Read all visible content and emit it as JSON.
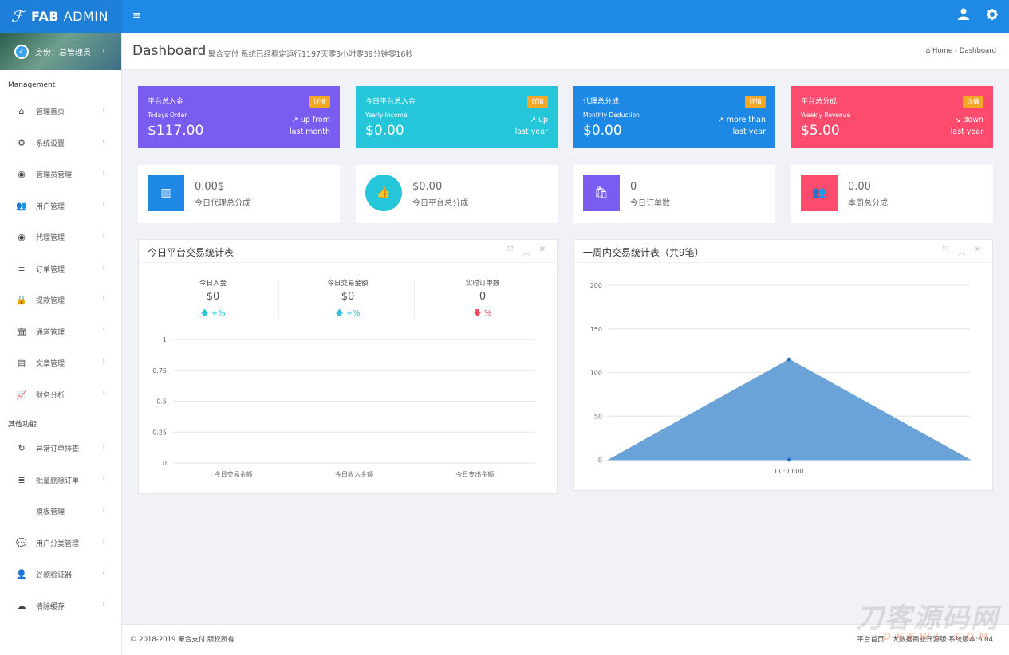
{
  "brand": {
    "bold": "FAB",
    "rest": " ADMIN",
    "logo_glyph": "ℱ"
  },
  "topbar": {
    "menu_icon": "≡",
    "user_icon": "user-icon",
    "settings_icon": "gear-icon"
  },
  "profile": {
    "label": "身份：总管理员"
  },
  "sidebar": {
    "section1": "Management",
    "items1": [
      {
        "label": "管理首页",
        "glyph": "⌂"
      },
      {
        "label": "系统设置",
        "glyph": "⚙"
      },
      {
        "label": "管理员管理",
        "glyph": "◉"
      },
      {
        "label": "用户管理",
        "glyph": "👥"
      },
      {
        "label": "代理管理",
        "glyph": "◉"
      },
      {
        "label": "订单管理",
        "glyph": "≡"
      },
      {
        "label": "提款管理",
        "glyph": "🔒"
      },
      {
        "label": "通道管理",
        "glyph": "🏛"
      },
      {
        "label": "文章管理",
        "glyph": "▤"
      },
      {
        "label": "财务分析",
        "glyph": "📈"
      }
    ],
    "section2": "其他功能",
    "items2": [
      {
        "label": "异常订单排查",
        "glyph": "↻"
      },
      {
        "label": "批量删除订单",
        "glyph": "≣"
      },
      {
        "label": "模板管理",
        "glyph": ""
      },
      {
        "label": "用户分类管理",
        "glyph": "💬"
      },
      {
        "label": "谷歌验证器",
        "glyph": "👤"
      },
      {
        "label": "清除缓存",
        "glyph": "☁"
      }
    ]
  },
  "header": {
    "title": "Dashboard",
    "subtitle": "聚合支付 系统已经稳定运行1197天零3小时零39分钟零16秒",
    "breadcrumb": "Home › Dashboard"
  },
  "stats": [
    {
      "title": "平台总入金",
      "sub": "Todays Order",
      "value": "$117.00",
      "badge": "详情",
      "trend1": "up from",
      "trend2": "last month",
      "color": "#7b5cf0"
    },
    {
      "title": "今日平台总入金",
      "sub": "Yearly Income",
      "value": "$0.00",
      "badge": "详情",
      "trend1": "up",
      "trend2": "last year",
      "color": "#26c6da"
    },
    {
      "title": "代理总分成",
      "sub": "Monthly Deduction",
      "value": "$0.00",
      "badge": "详情",
      "trend1": "more than",
      "trend2": "last year",
      "color": "#1e88e5"
    },
    {
      "title": "平台总分成",
      "sub": "Weekly Revenue",
      "value": "$5.00",
      "badge": "详情",
      "trend1": "down",
      "trend2": "last year",
      "color": "#fc4b6c"
    }
  ],
  "infos": [
    {
      "value": "0.00$",
      "label": "今日代理总分成",
      "icon": "bar-chart-icon",
      "color": "#1e88e5"
    },
    {
      "value": "$0.00",
      "label": "今日平台总分成",
      "icon": "thumbs-up-icon",
      "color": "#26c6da"
    },
    {
      "value": "0",
      "label": "今日订单数",
      "icon": "shopping-bag-icon",
      "color": "#7b5cf0"
    },
    {
      "value": "0.00",
      "label": "本周总分成",
      "icon": "users-icon",
      "color": "#fc4b6c"
    }
  ],
  "panel1": {
    "title": "今日平台交易统计表",
    "metrics": [
      {
        "label": "今日入金",
        "value": "$0",
        "pct": "+%",
        "dir": "up"
      },
      {
        "label": "今日交易金额",
        "value": "$0",
        "pct": "+%",
        "dir": "up"
      },
      {
        "label": "实时订单数",
        "value": "0",
        "pct": "%",
        "dir": "down"
      }
    ]
  },
  "panel2": {
    "title": "一周内交易统计表（共9笔）"
  },
  "chart_data": [
    {
      "type": "bar",
      "categories": [
        "今日交易金额",
        "今日收入金额",
        "今日支出金额"
      ],
      "values": [
        0,
        0,
        0
      ],
      "ylim": [
        0,
        1
      ],
      "yticks": [
        "1",
        "0.75",
        "0.5",
        "0.25",
        "0"
      ],
      "grid": true
    },
    {
      "type": "area",
      "x": [
        "",
        "00:00:00",
        ""
      ],
      "values": [
        0,
        115,
        0
      ],
      "ylim": [
        0,
        200
      ],
      "yticks": [
        "200",
        "150",
        "100",
        "50",
        "0"
      ],
      "grid": true,
      "color": "#6aa3d8"
    }
  ],
  "footer": {
    "copyright": "© 2018-2019 聚合支付 版权所有",
    "link1": "平台首页",
    "link2": "大数据商业开源版 系统版本:6.04"
  },
  "watermark": {
    "main": "刀客源码网",
    "sub": "DKEWL.COM"
  }
}
